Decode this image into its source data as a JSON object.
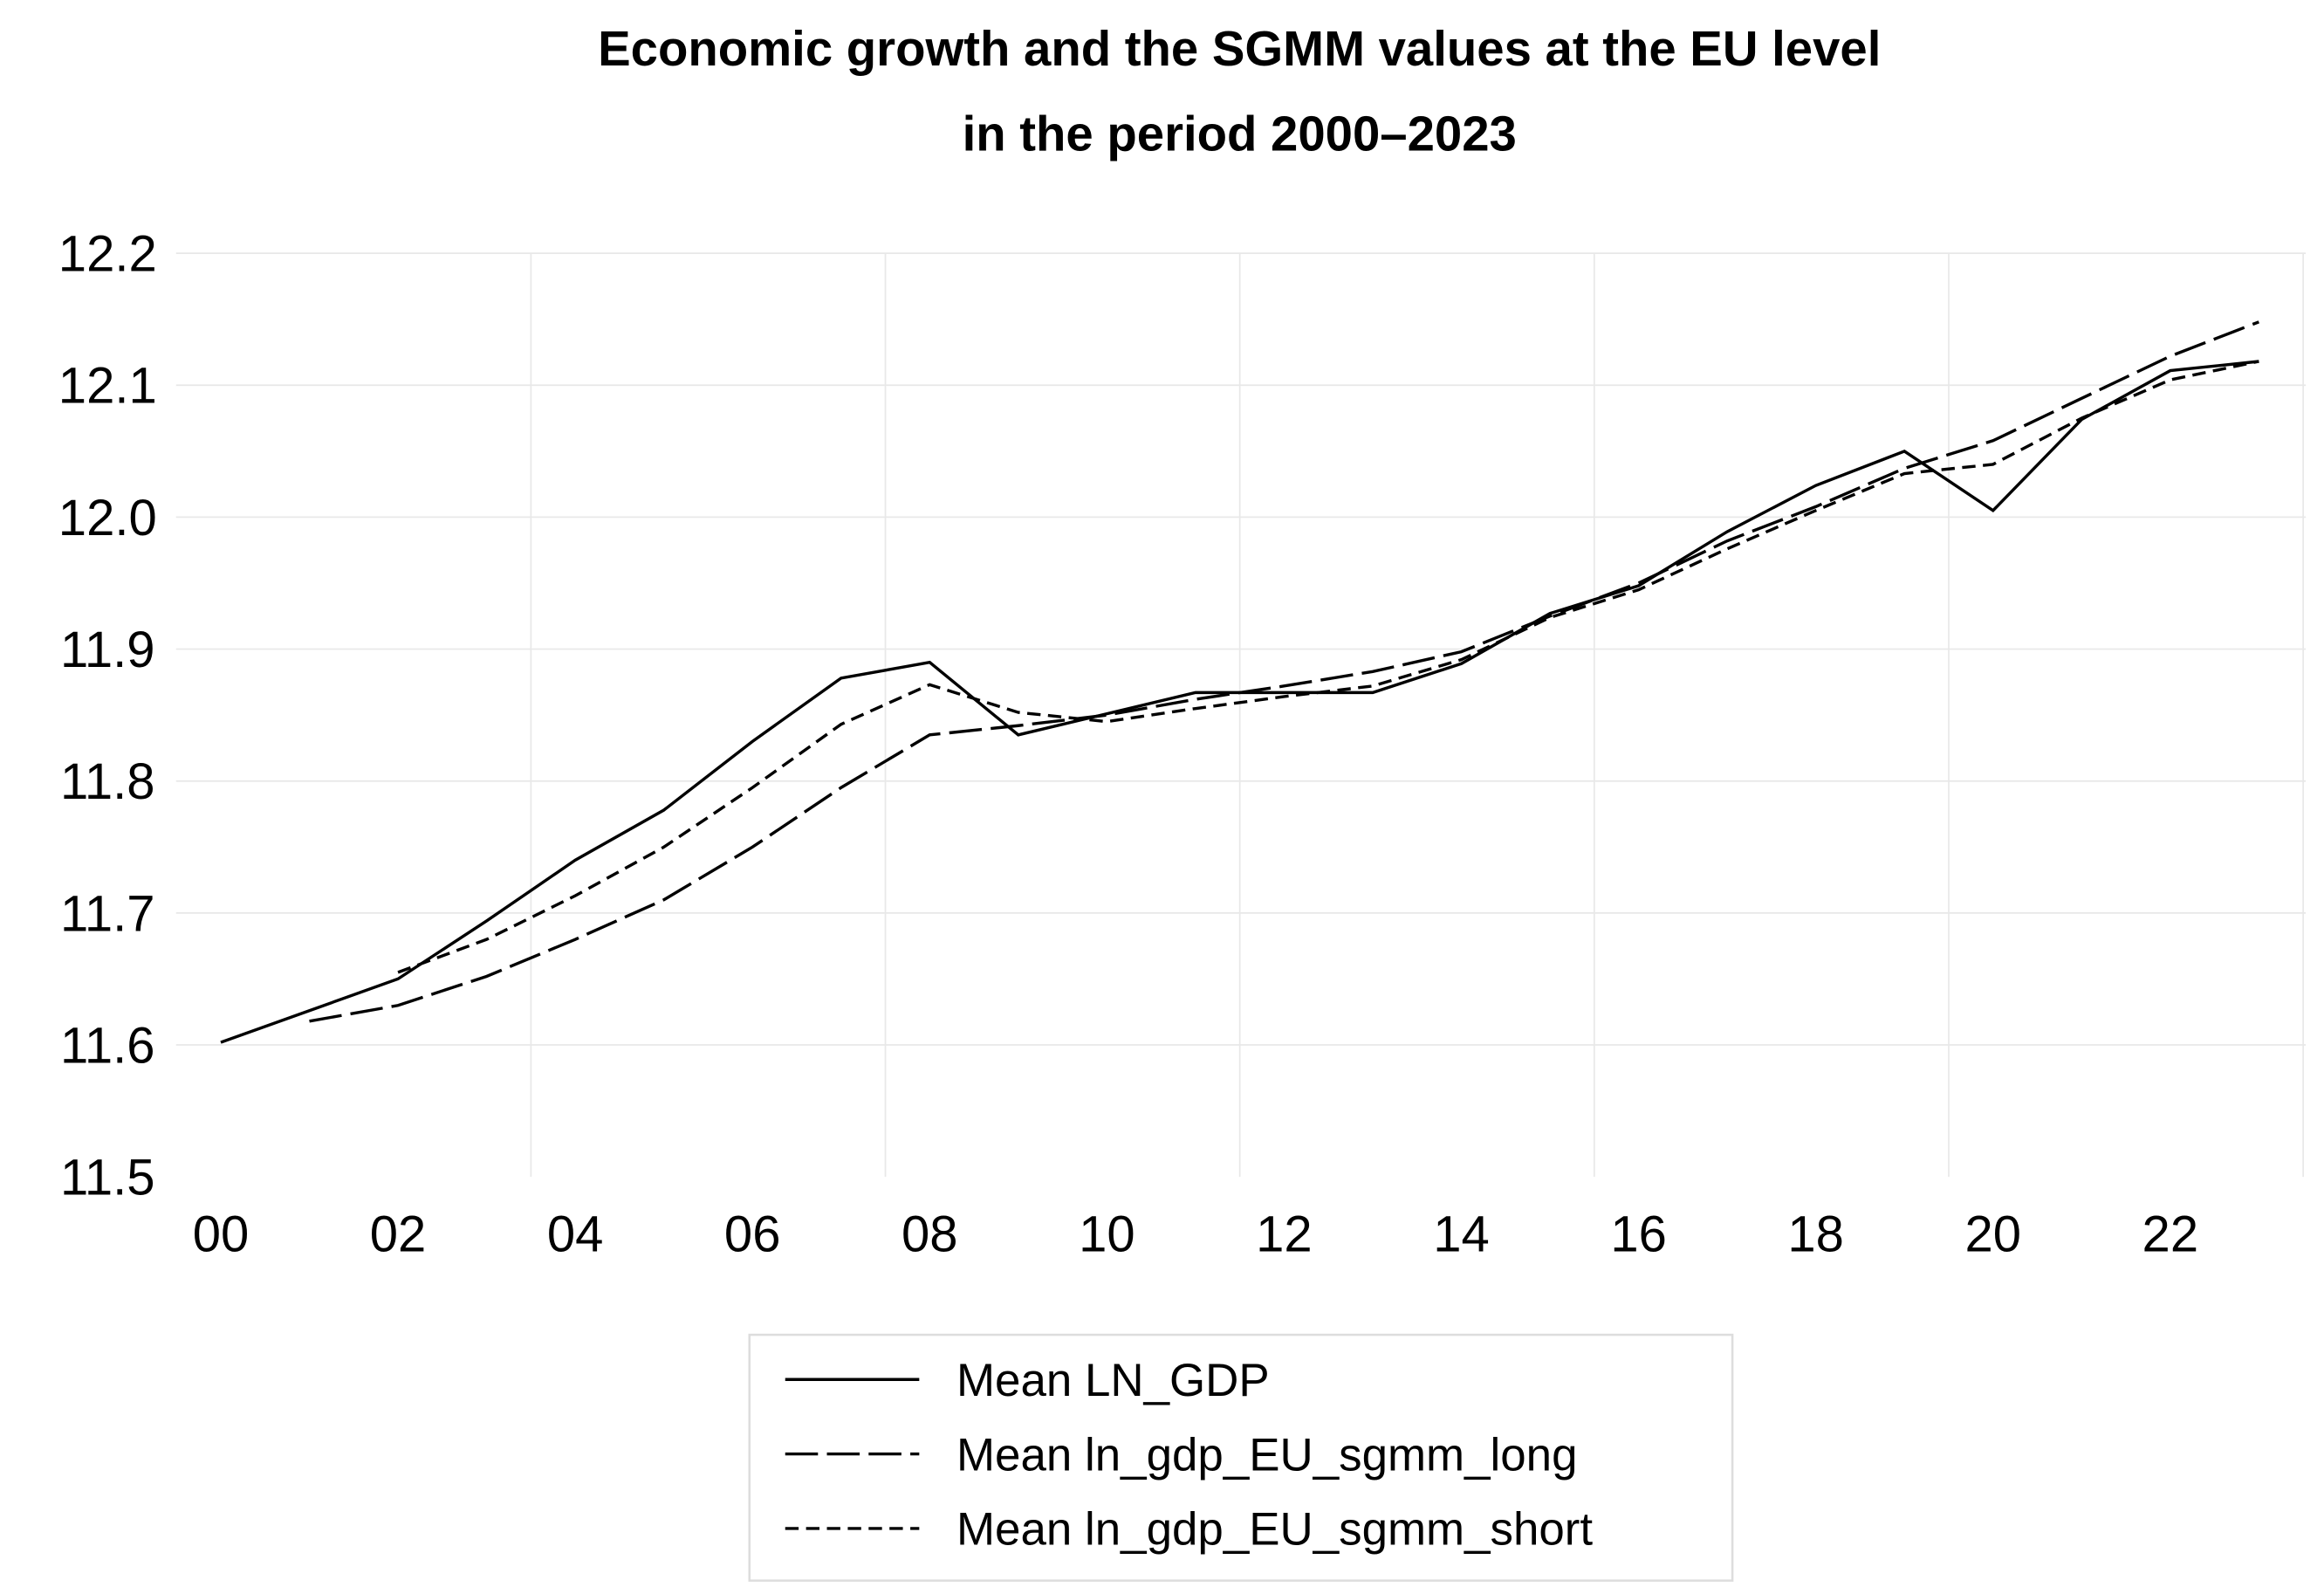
{
  "chart_data": {
    "type": "line",
    "title": "Economic growth and the SGMM values at the EU level",
    "subtitle": "in the period 2000–2023",
    "xlabel": "",
    "ylabel": "",
    "ylim": [
      11.5,
      12.2
    ],
    "yticks": [
      "11.5",
      "11.6",
      "11.7",
      "11.8",
      "11.9",
      "12.0",
      "12.1",
      "12.2"
    ],
    "xticks": [
      "00",
      "02",
      "04",
      "06",
      "08",
      "10",
      "12",
      "14",
      "16",
      "18",
      "20",
      "22"
    ],
    "x": [
      2000,
      2001,
      2002,
      2003,
      2004,
      2005,
      2006,
      2007,
      2008,
      2009,
      2010,
      2011,
      2012,
      2013,
      2014,
      2015,
      2016,
      2017,
      2018,
      2019,
      2020,
      2021,
      2022,
      2023
    ],
    "grid": true,
    "legend_position": "bottom",
    "series": [
      {
        "name": "Mean LN_GDP",
        "style": "solid",
        "values": [
          11.602,
          11.626,
          11.65,
          11.694,
          11.74,
          11.778,
          11.83,
          11.878,
          11.89,
          11.835,
          11.851,
          11.867,
          11.867,
          11.867,
          11.889,
          11.927,
          11.948,
          11.989,
          12.024,
          12.05,
          12.005,
          12.074,
          12.111,
          12.118
        ]
      },
      {
        "name": "Mean ln_gdp_EU_sgmm_long",
        "style": "long-dash",
        "values": [
          null,
          11.618,
          11.63,
          11.652,
          11.68,
          11.71,
          11.75,
          11.795,
          11.835,
          11.842,
          11.85,
          11.862,
          11.872,
          11.883,
          11.898,
          11.925,
          11.95,
          11.982,
          12.008,
          12.037,
          12.058,
          12.09,
          12.122,
          12.148
        ]
      },
      {
        "name": "Mean ln_gdp_EU_sgmm_short",
        "style": "short-dash",
        "values": [
          null,
          null,
          11.655,
          11.68,
          11.713,
          11.75,
          11.795,
          11.843,
          11.873,
          11.852,
          11.845,
          11.855,
          11.864,
          11.872,
          11.892,
          11.924,
          11.945,
          11.976,
          12.005,
          12.033,
          12.04,
          12.075,
          12.104,
          12.118
        ]
      }
    ]
  }
}
